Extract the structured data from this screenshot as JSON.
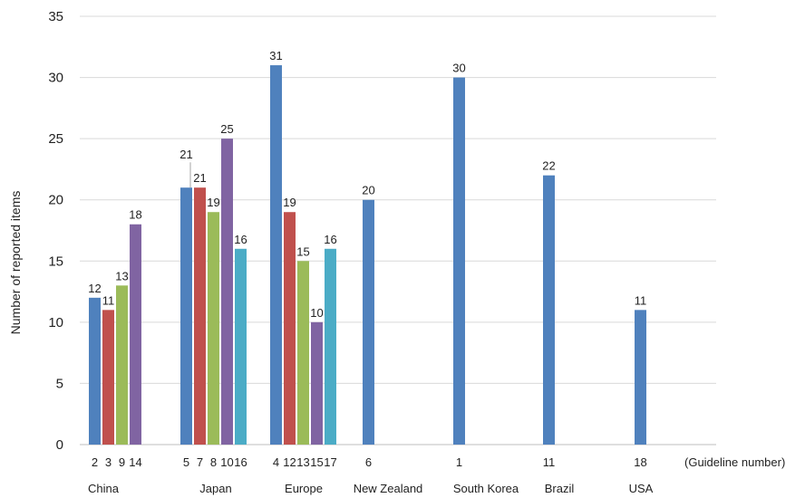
{
  "chart_data": {
    "type": "bar",
    "ylabel": "Number of reported items",
    "xlabel_suffix": "(Guideline number)",
    "ylim": [
      0,
      35
    ],
    "yticks": [
      0,
      5,
      10,
      15,
      20,
      25,
      30,
      35
    ],
    "grid": true,
    "series_colors": [
      "#4F81BD",
      "#C0504D",
      "#9BBB59",
      "#8064A2",
      "#4BACC6"
    ],
    "groups": [
      {
        "category": "China",
        "bars": [
          {
            "guideline": "2",
            "value": 12
          },
          {
            "guideline": "3",
            "value": 11
          },
          {
            "guideline": "9",
            "value": 13
          },
          {
            "guideline": "14",
            "value": 18
          }
        ]
      },
      {
        "category": "Japan",
        "bars": [
          {
            "guideline": "5",
            "value": 21
          },
          {
            "guideline": "7",
            "value": 21
          },
          {
            "guideline": "8",
            "value": 19
          },
          {
            "guideline": "10",
            "value": 25
          },
          {
            "guideline": "16",
            "value": 16
          }
        ]
      },
      {
        "category": "Europe",
        "bars": [
          {
            "guideline": "4",
            "value": 31
          },
          {
            "guideline": "12",
            "value": 19
          },
          {
            "guideline": "13",
            "value": 15
          },
          {
            "guideline": "15",
            "value": 10
          },
          {
            "guideline": "17",
            "value": 16
          }
        ]
      },
      {
        "category": "New Zealand",
        "bars": [
          {
            "guideline": "6",
            "value": 20
          }
        ]
      },
      {
        "category": "South Korea",
        "bars": [
          {
            "guideline": "1",
            "value": 30
          }
        ]
      },
      {
        "category": "Brazil",
        "bars": [
          {
            "guideline": "11",
            "value": 22
          }
        ]
      },
      {
        "category": "USA",
        "bars": [
          {
            "guideline": "18",
            "value": 11
          }
        ]
      }
    ]
  }
}
